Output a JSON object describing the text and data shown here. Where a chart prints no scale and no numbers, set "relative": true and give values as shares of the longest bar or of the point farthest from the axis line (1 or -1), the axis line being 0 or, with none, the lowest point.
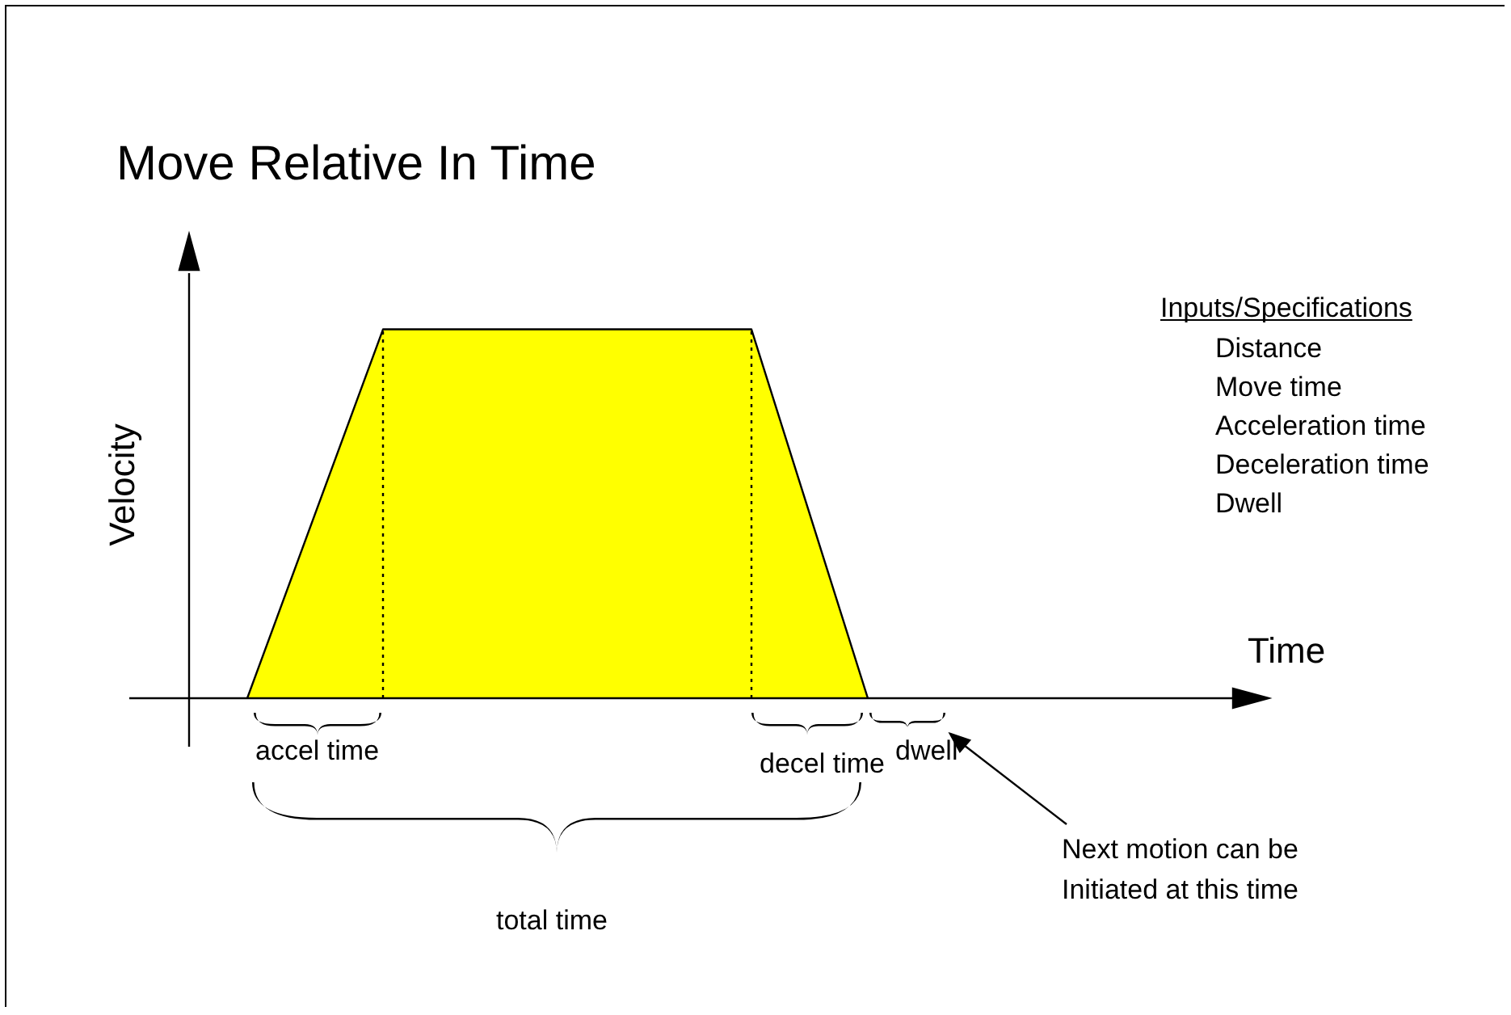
{
  "chart_data": {
    "type": "area",
    "title": "Move Relative In Time",
    "xlabel": "Time",
    "ylabel": "Velocity",
    "relative": true,
    "marker": "none",
    "color": "#ffff00",
    "categories": [
      null,
      null,
      null,
      null,
      null,
      null,
      null,
      null,
      null,
      null,
      null,
      null,
      null,
      null,
      null,
      null,
      null,
      null,
      null,
      null,
      null,
      null,
      null,
      null,
      null,
      null,
      null,
      null,
      null,
      null,
      null,
      null,
      null,
      null,
      null,
      null,
      null,
      null,
      null,
      null,
      null,
      null,
      null,
      null,
      null,
      null,
      null,
      null,
      null,
      null,
      null,
      null,
      null,
      null,
      null,
      null
    ],
    "values": [
      null,
      null,
      null,
      0,
      null,
      null,
      null,
      null,
      null,
      null,
      1,
      null,
      null,
      null,
      null,
      null,
      null,
      null,
      null,
      null,
      null,
      null,
      null,
      null,
      null,
      null,
      null,
      null,
      null,
      1,
      null,
      null,
      null,
      null,
      null,
      0,
      null,
      null,
      null,
      null,
      null,
      null,
      null,
      null,
      null,
      null,
      null,
      null,
      null,
      null,
      null,
      null,
      null,
      null,
      null,
      null
    ],
    "annotations": [
      "Inputs/Specifications",
      "Distance",
      "Move time",
      "Acceleration time",
      "Deceleration time",
      "Dwell",
      "accel time",
      "decel time",
      "dwell",
      "total time",
      "Next motion can be",
      "Initiated at this time"
    ]
  }
}
